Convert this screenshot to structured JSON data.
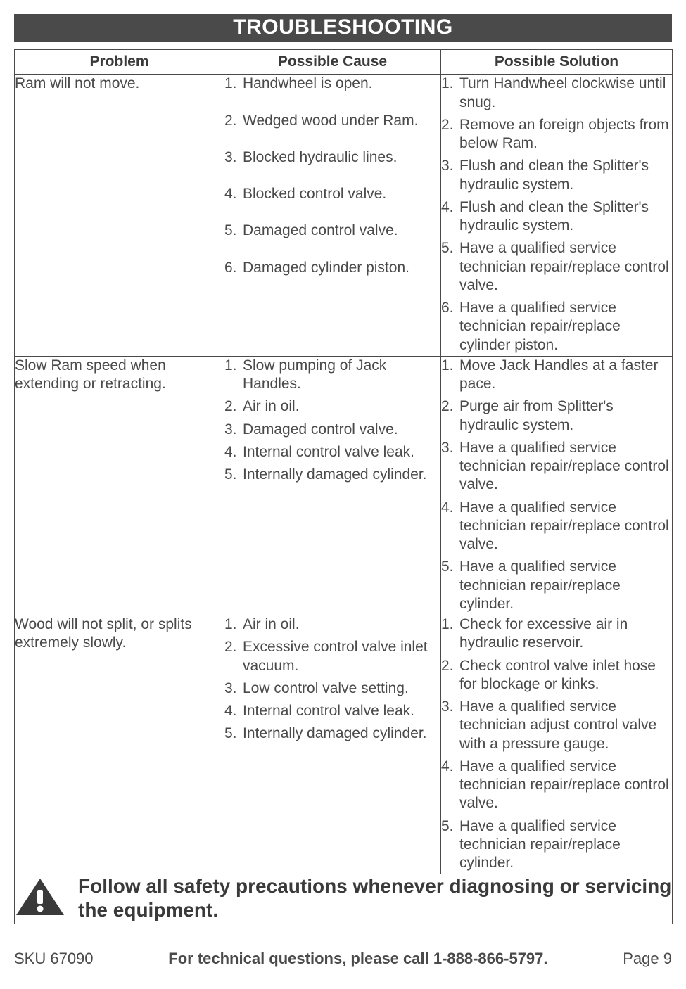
{
  "title": "TROUBLESHOOTING",
  "headers": {
    "problem": "Problem",
    "cause": "Possible Cause",
    "solution": "Possible Solution"
  },
  "rows": [
    {
      "problem": "Ram will not move.",
      "causes": [
        "Handwheel is open.",
        "Wedged wood under Ram.",
        "Blocked hydraulic lines.",
        "Blocked control valve.",
        "Damaged control valve.",
        "Damaged cylinder piston."
      ],
      "solutions": [
        "Turn Handwheel clockwise until snug.",
        "Remove an foreign objects from below Ram.",
        "Flush and clean the Splitter's hydraulic system.",
        "Flush and clean the Splitter's hydraulic system.",
        "Have a qualified service technician repair/replace control valve.",
        "Have a qualified service technician repair/replace cylinder piston."
      ],
      "cause_gaps": [
        true,
        true,
        true,
        true,
        true,
        false
      ],
      "sol_gaps": [
        false,
        false,
        false,
        false,
        false,
        false
      ]
    },
    {
      "problem": "Slow Ram speed when extending or retracting.",
      "causes": [
        "Slow pumping of Jack Handles.",
        "Air in oil.",
        "Damaged control valve.",
        "Internal control valve leak.",
        "Internally damaged cylinder."
      ],
      "solutions": [
        "Move Jack Handles at a faster pace.",
        "Purge air from Splitter's hydraulic system.",
        "Have a qualified service technician repair/replace control valve.",
        "Have a qualified service technician repair/replace control valve.",
        "Have a qualified service technician repair/replace cylinder."
      ],
      "cause_gaps": [
        false,
        false,
        false,
        false,
        false
      ],
      "sol_gaps": [
        false,
        false,
        false,
        false,
        false
      ]
    },
    {
      "problem": "Wood will not split, or splits extremely slowly.",
      "causes": [
        "Air in oil.",
        "Excessive control valve inlet vacuum.",
        "Low control valve setting.",
        "Internal control valve leak.",
        "Internally damaged cylinder."
      ],
      "solutions": [
        "Check for excessive air in hydraulic reservoir.",
        "Check control valve inlet hose for blockage or kinks.",
        "Have a qualified service technician adjust control valve with a pressure gauge.",
        "Have a qualified service technician repair/replace control valve.",
        "Have a qualified service technician repair/replace cylinder."
      ],
      "cause_gaps": [
        false,
        false,
        false,
        false,
        false
      ],
      "sol_gaps": [
        false,
        false,
        false,
        false,
        false
      ]
    }
  ],
  "warning_text": "Follow all safety precautions whenever diagnosing or servicing the equipment.",
  "footer": {
    "sku": "SKU 67090",
    "call": "For technical questions, please call 1-888-866-5797.",
    "page": "Page 9"
  },
  "colors": {
    "bar_bg": "#4a4a4a",
    "bar_fg": "#ffffff",
    "text": "#4a4a4a",
    "border": "#4a4a4a"
  }
}
